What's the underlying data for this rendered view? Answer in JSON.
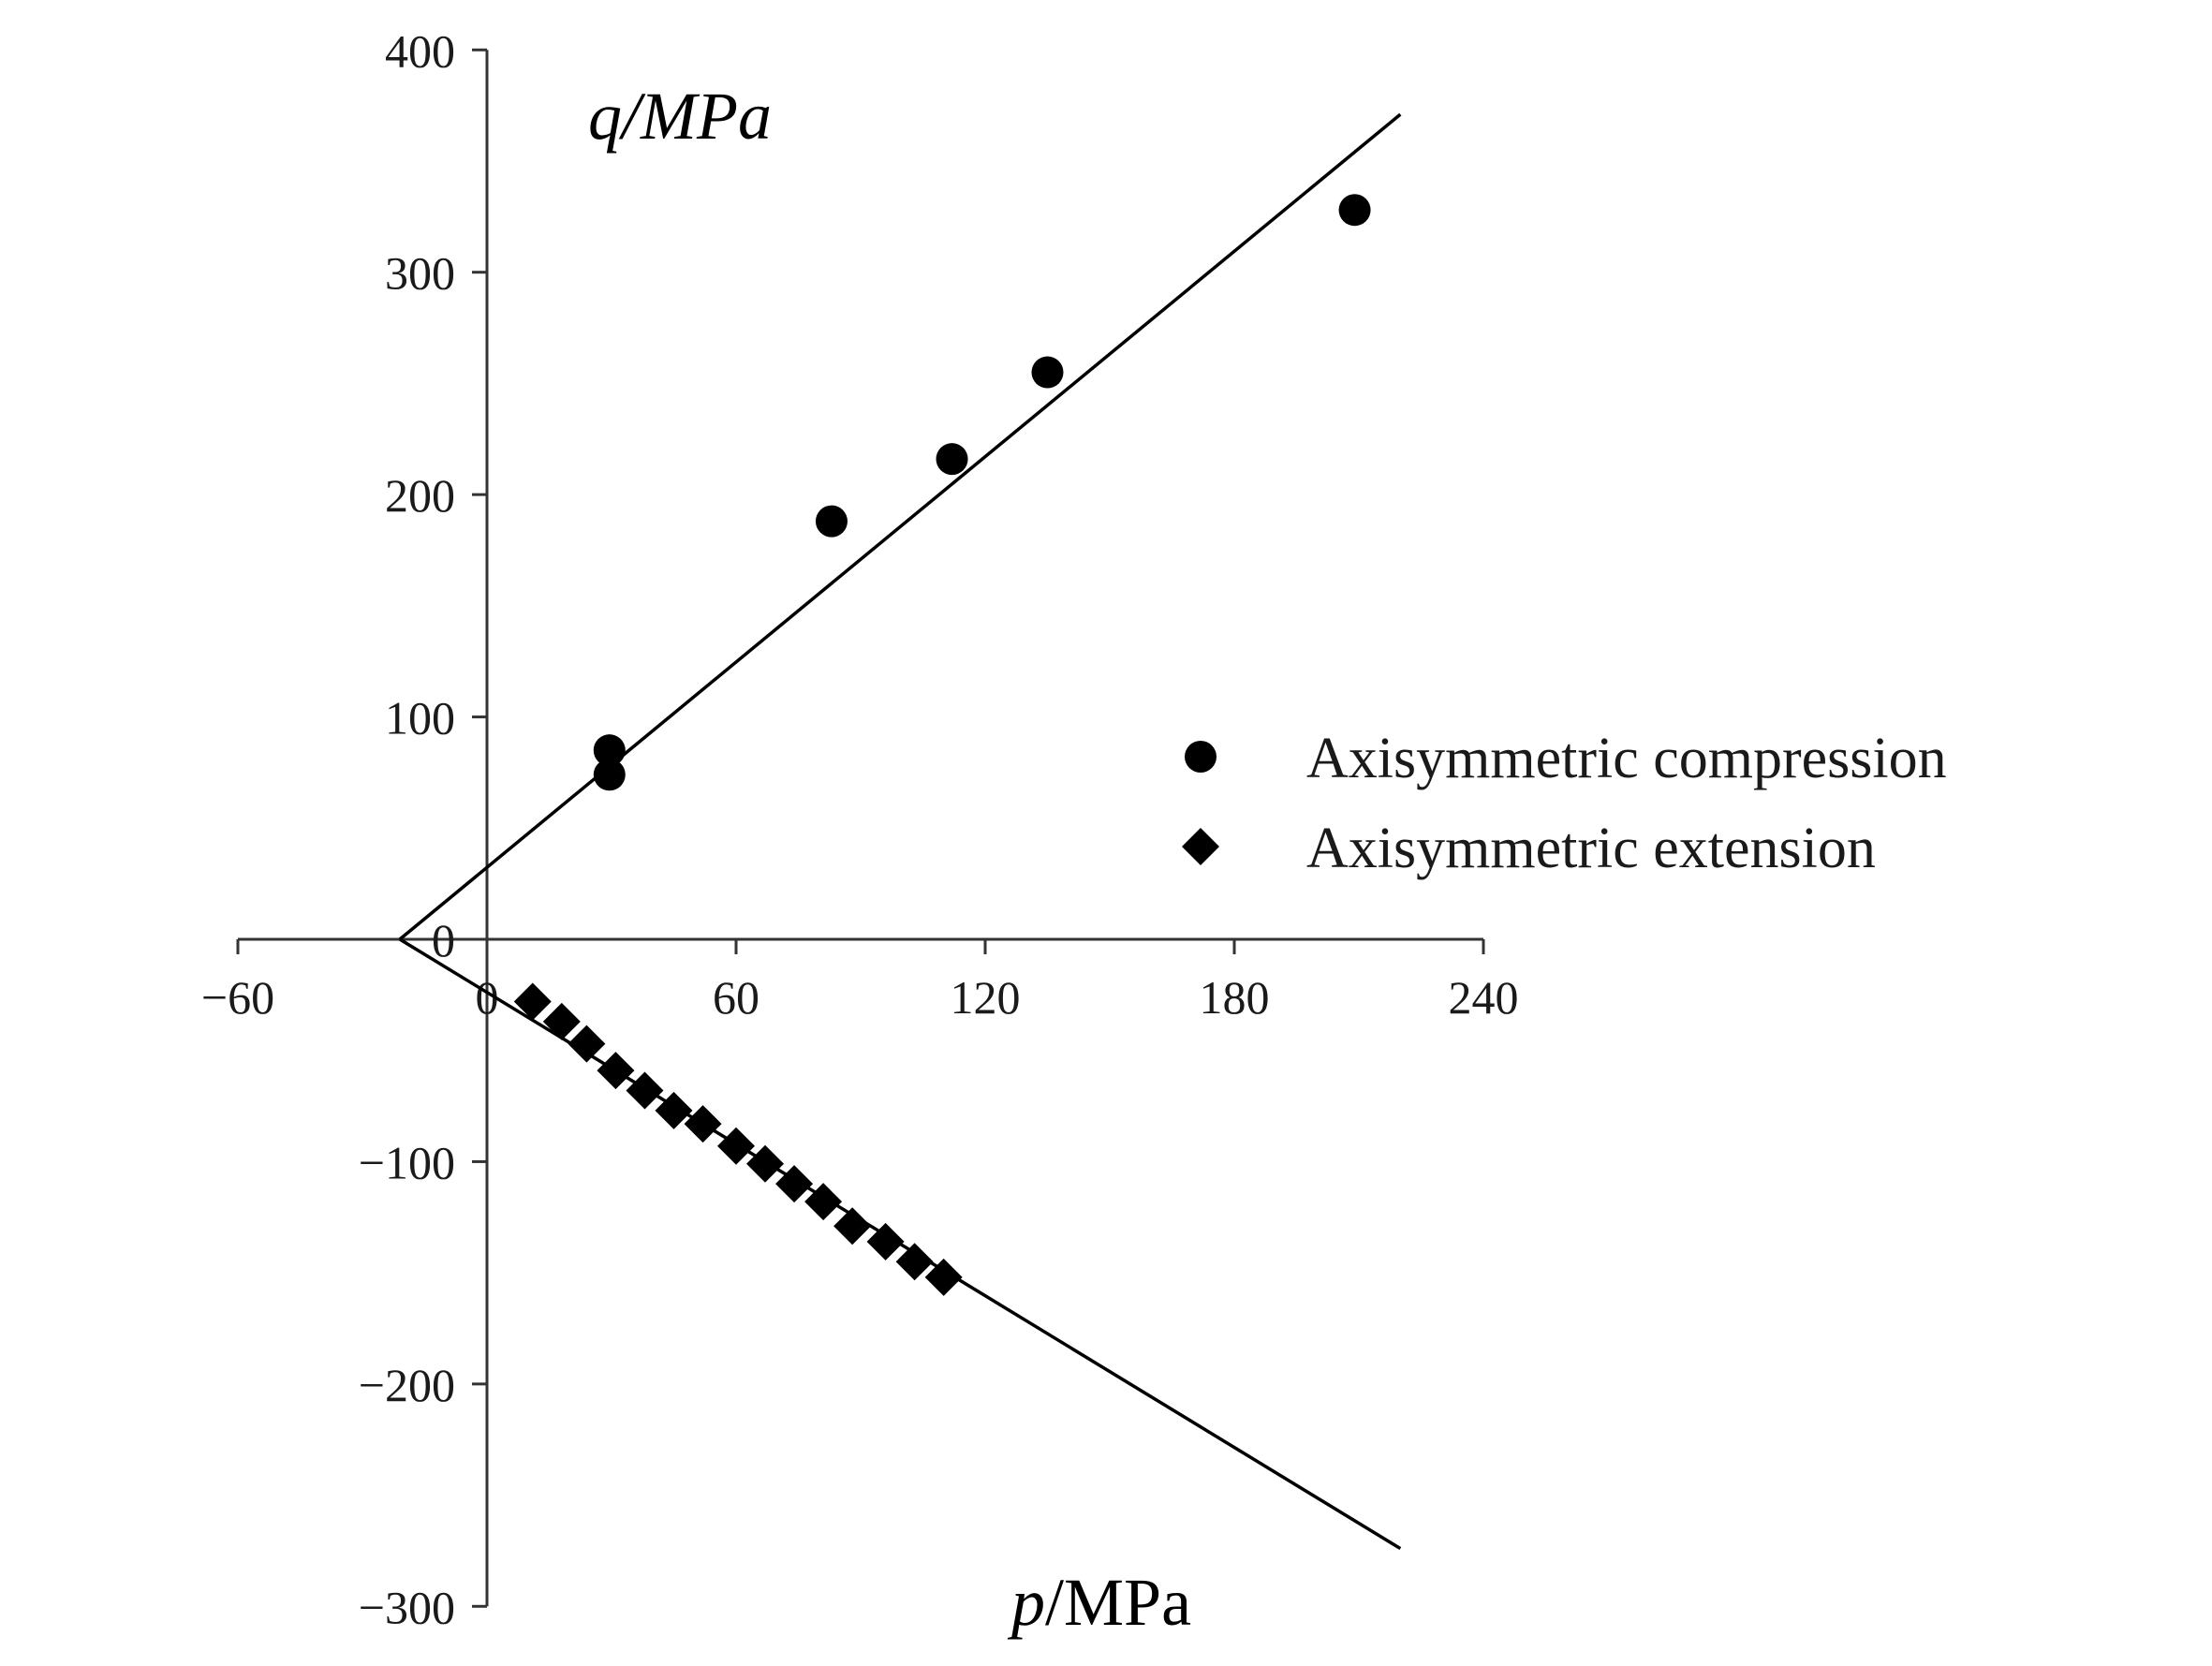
{
  "chart_data": {
    "type": "scatter",
    "xlabel": {
      "var": "p",
      "unit": "/MPa"
    },
    "ylabel": "q/MPa",
    "xlim": [
      -60,
      240
    ],
    "ylim": [
      -300,
      400
    ],
    "x_ticks": [
      -60,
      0,
      60,
      120,
      180,
      240
    ],
    "x_tick_labels": [
      "−60",
      "0",
      "60",
      "120",
      "180",
      "240"
    ],
    "y_ticks": [
      -300,
      -200,
      -100,
      0,
      100,
      200,
      300,
      400
    ],
    "y_tick_labels": [
      "−300",
      "−200",
      "−100",
      "0",
      "100",
      "200",
      "300",
      "400"
    ],
    "grid": false,
    "legend_position": "right",
    "series": [
      {
        "name": "Axisymmetric compression",
        "marker": "circle",
        "color": "#000000",
        "points": [
          [
            29.5,
            85
          ],
          [
            29.5,
            74
          ],
          [
            83,
            188
          ],
          [
            112,
            216
          ],
          [
            135,
            255
          ],
          [
            209,
            328
          ]
        ]
      },
      {
        "name": "Axisymmetric extension",
        "marker": "diamond",
        "color": "#000000",
        "points": [
          [
            11,
            -28
          ],
          [
            18,
            -37
          ],
          [
            24,
            -47
          ],
          [
            31,
            -59
          ],
          [
            38,
            -68
          ],
          [
            45,
            -77
          ],
          [
            52,
            -83
          ],
          [
            60,
            -93
          ],
          [
            67,
            -101
          ],
          [
            74,
            -110
          ],
          [
            81,
            -118
          ],
          [
            88,
            -129
          ],
          [
            96,
            -136
          ],
          [
            103,
            -145
          ],
          [
            110,
            -152
          ]
        ]
      }
    ],
    "lines": [
      {
        "name": "compression fit",
        "from": [
          -21,
          0
        ],
        "to": [
          220,
          371
        ]
      },
      {
        "name": "extension fit",
        "from": [
          -21,
          0
        ],
        "to": [
          220,
          -274
        ]
      }
    ]
  }
}
